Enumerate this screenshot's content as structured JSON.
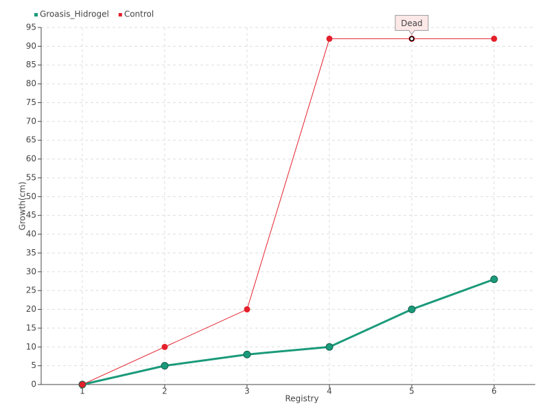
{
  "chart_data": {
    "type": "line",
    "x_label": "Registry",
    "y_label": "Growth(cm)",
    "x": [
      1,
      2,
      3,
      4,
      5,
      6
    ],
    "series": [
      {
        "name": "Groasis_Hidrogel",
        "color": "#1a9a7a",
        "values": [
          0,
          5,
          8,
          10,
          20,
          28
        ]
      },
      {
        "name": "Control",
        "color": "#e3202b",
        "values": [
          0,
          10,
          20,
          92,
          92,
          92
        ]
      }
    ],
    "xlim": [
      0.5,
      6.5
    ],
    "xticks": [
      1,
      2,
      3,
      4,
      5,
      6
    ],
    "ylim": [
      0,
      95
    ],
    "yticks": [
      0,
      5,
      10,
      15,
      20,
      25,
      30,
      35,
      40,
      45,
      50,
      55,
      60,
      65,
      70,
      75,
      80,
      85,
      90,
      95
    ],
    "grid": true,
    "legend": "top-left",
    "annotations": [
      {
        "text": "Dead",
        "x": 5,
        "y": 92
      }
    ]
  }
}
